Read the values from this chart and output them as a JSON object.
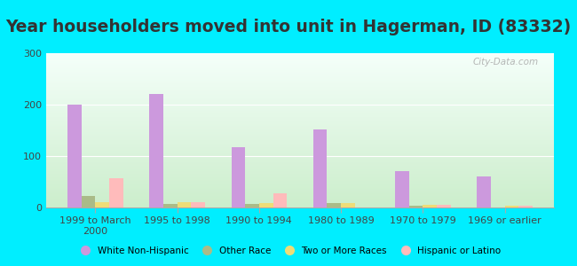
{
  "title": "Year householders moved into unit in Hagerman, ID (83332)",
  "categories": [
    "1999 to March\n2000",
    "1995 to 1998",
    "1990 to 1994",
    "1980 to 1989",
    "1970 to 1979",
    "1969 or earlier"
  ],
  "series": {
    "White Non-Hispanic": [
      200,
      220,
      117,
      152,
      70,
      60
    ],
    "Other Race": [
      22,
      7,
      7,
      8,
      3,
      0
    ],
    "Two or More Races": [
      10,
      10,
      8,
      8,
      5,
      3
    ],
    "Hispanic or Latino": [
      57,
      10,
      28,
      0,
      5,
      3
    ]
  },
  "colors": {
    "White Non-Hispanic": "#cc99dd",
    "Other Race": "#aabb88",
    "Two or More Races": "#eedd77",
    "Hispanic or Latino": "#ffbbbb"
  },
  "bar_width": 0.17,
  "ylim": [
    0,
    300
  ],
  "yticks": [
    0,
    100,
    200,
    300
  ],
  "outer_bg": "#00eeff",
  "title_fontsize": 13.5,
  "title_color": "#333333",
  "watermark": "City-Data.com",
  "grad_top": "#f5fffa",
  "grad_bottom": "#cceecc"
}
